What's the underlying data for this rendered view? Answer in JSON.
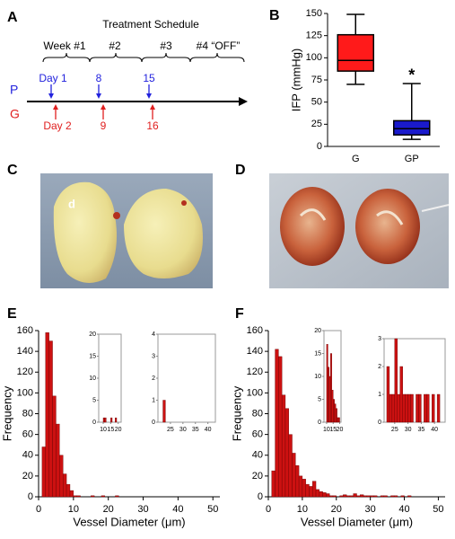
{
  "panel_labels": [
    "A",
    "B",
    "C",
    "D",
    "E",
    "F"
  ],
  "schedule": {
    "title": "Treatment Schedule",
    "weeks": [
      "Week #1",
      "#2",
      "#3",
      "#4 “OFF”"
    ],
    "rows": [
      {
        "label": "P",
        "days": [
          "Day 1",
          "8",
          "15"
        ],
        "color": "#2222dd"
      },
      {
        "label": "G",
        "days": [
          "Day 2",
          "9",
          "16"
        ],
        "color": "#e02020"
      }
    ]
  },
  "photo_annotation": "d",
  "chart_data": [
    {
      "type": "box",
      "ylabel": "IFP (mmHg)",
      "categories": [
        "G",
        "GP"
      ],
      "values": [
        [
          70,
          85,
          97,
          126,
          149
        ],
        [
          8,
          13,
          20,
          29,
          71
        ]
      ],
      "colors": [
        "#ff1a1a",
        "#1a1acc"
      ],
      "annotation": "*",
      "ylim": [
        0,
        150
      ],
      "yticks": [
        0,
        25,
        50,
        75,
        100,
        125,
        150
      ]
    },
    {
      "type": "histogram",
      "xlabel": "Vessel Diameter (μm)",
      "ylabel": "Frequency",
      "color": "#cc1111",
      "bins": [
        1,
        2,
        3,
        4,
        5,
        6,
        7,
        8,
        9,
        10,
        11,
        12,
        13,
        14,
        15,
        16,
        17,
        18,
        19,
        20,
        21,
        22,
        23
      ],
      "values": [
        48,
        158,
        150,
        97,
        70,
        40,
        22,
        12,
        6,
        1,
        1,
        0,
        0,
        0,
        1,
        0,
        0,
        1,
        0,
        0,
        0,
        1
      ],
      "xlim": [
        0,
        52
      ],
      "ylim": [
        0,
        160
      ],
      "xticks": [
        0,
        10,
        20,
        30,
        40,
        50
      ],
      "yticks": [
        0,
        20,
        40,
        60,
        80,
        100,
        120,
        140,
        160
      ]
    },
    {
      "type": "histogram",
      "color": "#cc1111",
      "bins": [
        10,
        11,
        12,
        13,
        14,
        15,
        16,
        17,
        18,
        19,
        20
      ],
      "values": [
        1,
        1,
        0,
        0,
        0,
        1,
        0,
        0,
        1,
        0
      ],
      "xlim": [
        7,
        22
      ],
      "ylim": [
        0,
        20
      ],
      "xticks": [
        10,
        15,
        20
      ],
      "yticks": [
        0,
        5,
        10,
        15,
        20
      ]
    },
    {
      "type": "histogram",
      "color": "#cc1111",
      "bins": [
        22,
        23
      ],
      "values": [
        1
      ],
      "xlim": [
        20,
        43
      ],
      "ylim": [
        0,
        4
      ],
      "xticks": [
        25,
        30,
        35,
        40
      ],
      "yticks": [
        0,
        1,
        2,
        3,
        4
      ]
    },
    {
      "type": "histogram",
      "xlabel": "Vessel Diameter (μm)",
      "ylabel": "Frequency",
      "color": "#cc1111",
      "bins": [
        1,
        2,
        3,
        4,
        5,
        6,
        7,
        8,
        9,
        10,
        11,
        12,
        13,
        14,
        15,
        16,
        17,
        18,
        19,
        20,
        21,
        22,
        23,
        24,
        25,
        26,
        27,
        28,
        29,
        30,
        31,
        32,
        33,
        34,
        35,
        36,
        37,
        38,
        39,
        40,
        41,
        42,
        43
      ],
      "values": [
        25,
        142,
        135,
        98,
        85,
        60,
        42,
        30,
        20,
        17,
        12,
        10,
        15,
        7,
        5,
        4,
        3,
        1,
        1,
        0,
        1,
        2,
        1,
        1,
        3,
        1,
        2,
        1,
        1,
        1,
        1,
        0,
        1,
        1,
        0,
        1,
        1,
        0,
        1,
        0,
        1,
        0
      ],
      "xlim": [
        0,
        52
      ],
      "ylim": [
        0,
        160
      ],
      "xticks": [
        0,
        10,
        20,
        30,
        40,
        50
      ],
      "yticks": [
        0,
        20,
        40,
        60,
        80,
        100,
        120,
        140,
        160
      ]
    },
    {
      "type": "histogram",
      "color": "#cc1111",
      "bins": [
        10,
        11,
        12,
        13,
        14,
        15,
        16,
        17,
        18,
        19,
        20
      ],
      "values": [
        17,
        12,
        10,
        15,
        7,
        5,
        4,
        3,
        1,
        1
      ],
      "xlim": [
        8,
        21
      ],
      "ylim": [
        0,
        20
      ],
      "xticks": [
        10,
        15,
        20
      ],
      "yticks": [
        0,
        5,
        10,
        15,
        20
      ]
    },
    {
      "type": "histogram",
      "color": "#cc1111",
      "bins": [
        22,
        23,
        24,
        25,
        26,
        27,
        28,
        29,
        30,
        31,
        32,
        33,
        34,
        35,
        36,
        37,
        38,
        39,
        40,
        41,
        42,
        43
      ],
      "values": [
        2,
        1,
        1,
        3,
        1,
        2,
        1,
        1,
        1,
        1,
        0,
        1,
        1,
        0,
        1,
        1,
        0,
        1,
        0,
        1,
        0
      ],
      "xlim": [
        21,
        44
      ],
      "ylim": [
        0,
        3
      ],
      "xticks": [
        25,
        30,
        35,
        40
      ],
      "yticks": [
        0,
        1,
        2,
        3
      ]
    }
  ]
}
